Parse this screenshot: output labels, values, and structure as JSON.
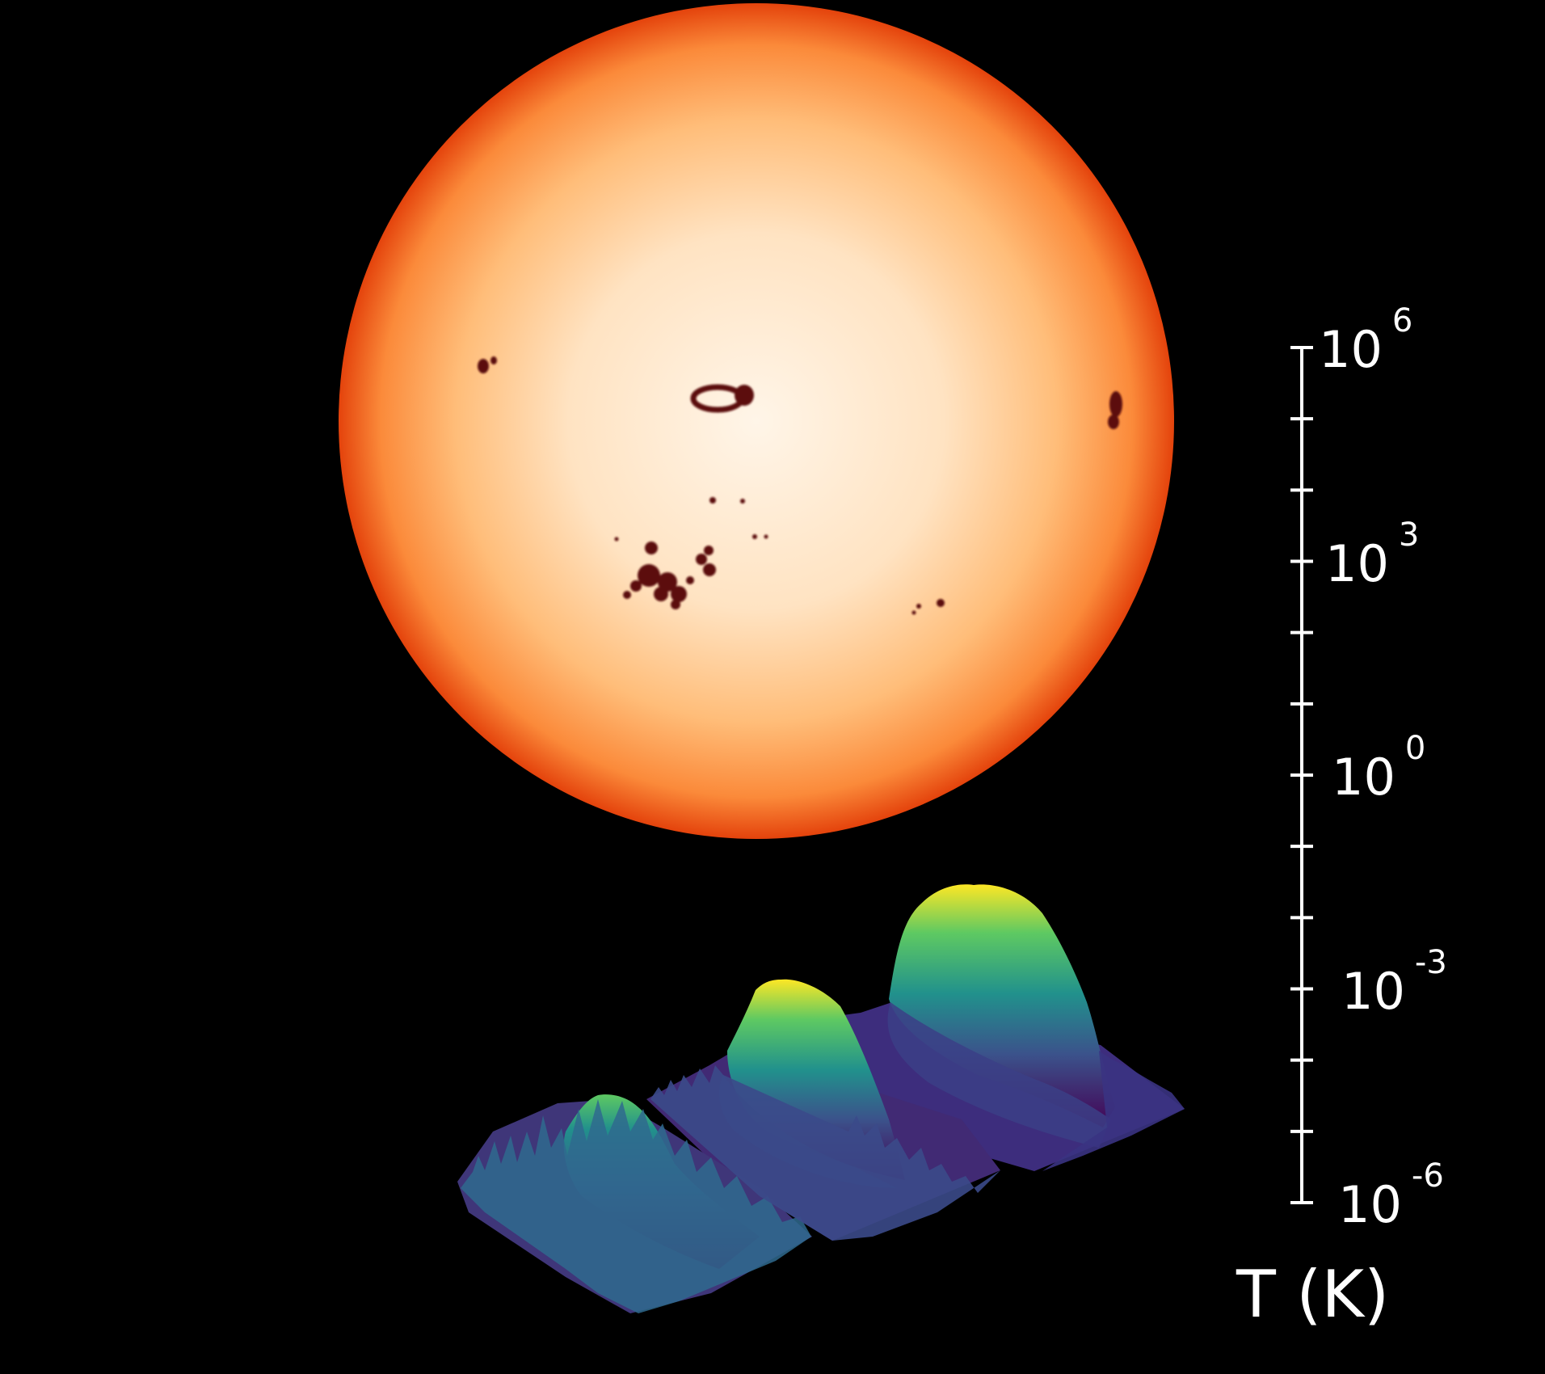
{
  "colors": {
    "background": "#000000",
    "sun_center": "#fff4e6",
    "sun_mid": "#ffc786",
    "sun_limb": "#e8450e",
    "sunspot": "#5a0d10",
    "viridis": [
      "#440154",
      "#3b528b",
      "#21918c",
      "#5ec962",
      "#fde725"
    ]
  },
  "temperature_scale": {
    "base": "10",
    "axis_title": "T (K)",
    "ticks": [
      {
        "exponent": "6",
        "log_value": 6
      },
      {
        "exponent": "3",
        "log_value": 3
      },
      {
        "exponent": "0",
        "log_value": 0
      },
      {
        "exponent": "-3",
        "log_value": -3
      },
      {
        "exponent": "-6",
        "log_value": -6
      }
    ],
    "minor_tick_step": 1
  },
  "density_peaks": [
    {
      "name": "left-peak",
      "relative_height": 0.45
    },
    {
      "name": "middle-peak",
      "relative_height": 0.72
    },
    {
      "name": "right-peak",
      "relative_height": 1.0
    }
  ]
}
